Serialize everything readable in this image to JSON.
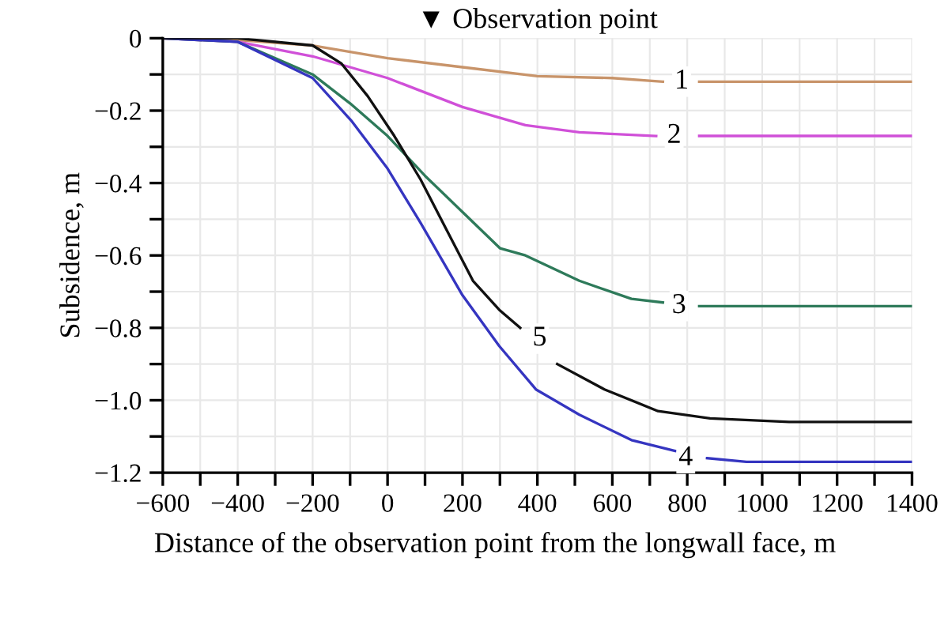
{
  "chart_data": {
    "type": "line",
    "xlabel": "Distance of the observation point from the longwall face, m",
    "ylabel": "Subsidence, m",
    "series": [
      {
        "color": "#c8946a",
        "x": [
          -600,
          -400,
          -200,
          0,
          200,
          400,
          600,
          735,
          790,
          832,
          1000,
          1200,
          1400
        ],
        "values": [
          0,
          -0.005,
          -0.02,
          -0.055,
          -0.08,
          -0.105,
          -0.11,
          -0.12,
          null,
          -0.12,
          -0.12,
          -0.12,
          -0.12
        ]
      },
      {
        "color": "#d050d8",
        "x": [
          -600,
          -400,
          -200,
          0,
          200,
          368,
          512,
          717,
          790,
          832,
          1000,
          1200,
          1400
        ],
        "values": [
          0,
          -0.01,
          -0.05,
          -0.11,
          -0.19,
          -0.24,
          -0.26,
          -0.27,
          null,
          -0.27,
          -0.27,
          -0.27,
          -0.27
        ]
      },
      {
        "color": "#2e7a5a",
        "x": [
          -600,
          -400,
          -200,
          -100,
          0,
          100,
          200,
          300,
          368,
          512,
          651,
          735,
          790,
          832,
          1000,
          1200,
          1400
        ],
        "values": [
          0,
          -0.01,
          -0.1,
          -0.18,
          -0.27,
          -0.38,
          -0.48,
          -0.58,
          -0.6,
          -0.67,
          -0.72,
          -0.73,
          null,
          -0.74,
          -0.74,
          -0.74,
          -0.74
        ]
      },
      {
        "color": "#3535c0",
        "x": [
          -600,
          -400,
          -200,
          -95,
          0,
          88,
          200,
          298,
          396,
          512,
          651,
          768,
          810,
          853,
          958,
          1200,
          1400
        ],
        "values": [
          0,
          -0.01,
          -0.11,
          -0.23,
          -0.36,
          -0.51,
          -0.71,
          -0.85,
          -0.97,
          -1.04,
          -1.11,
          -1.14,
          null,
          -1.16,
          -1.17,
          -1.17,
          -1.17
        ]
      },
      {
        "color": "#111111",
        "x": [
          -600,
          -400,
          -200,
          -123,
          -53,
          18,
          88,
          158,
          228,
          298,
          354,
          400,
          453,
          579,
          722,
          861,
          1072,
          1400
        ],
        "values": [
          0,
          0,
          -0.02,
          -0.07,
          -0.16,
          -0.27,
          -0.39,
          -0.53,
          -0.67,
          -0.75,
          -0.8,
          null,
          -0.9,
          -0.97,
          -1.03,
          -1.05,
          -1.06,
          -1.06
        ]
      }
    ],
    "annotations": [
      "▼ Observation point",
      {
        "text": "1",
        "x": 785,
        "y": -0.12
      },
      {
        "text": "2",
        "x": 765,
        "y": -0.27
      },
      {
        "text": "3",
        "x": 778,
        "y": -0.74
      },
      {
        "text": "4",
        "x": 796,
        "y": -1.16
      },
      {
        "text": "5",
        "x": 406,
        "y": -0.83
      }
    ],
    "xlim": [
      -600,
      1400
    ],
    "ylim": [
      -1.2,
      0
    ],
    "xticks": [
      {
        "value": -600,
        "label": "−600"
      },
      {
        "value": -400,
        "label": "−400"
      },
      {
        "value": -200,
        "label": "−200"
      },
      0,
      200,
      400,
      600,
      800,
      1000,
      1200,
      1400
    ],
    "yticks": [
      {
        "value": -1.2,
        "label": "−1.2"
      },
      {
        "value": -1.0,
        "label": "−1.0"
      },
      {
        "value": -0.8,
        "label": "−0.8"
      },
      {
        "value": -0.6,
        "label": "−0.6"
      },
      {
        "value": -0.4,
        "label": "−0.4"
      },
      {
        "value": -0.2,
        "label": "−0.2"
      },
      0
    ],
    "grid": true,
    "line_style": "solid",
    "marker": "none"
  }
}
